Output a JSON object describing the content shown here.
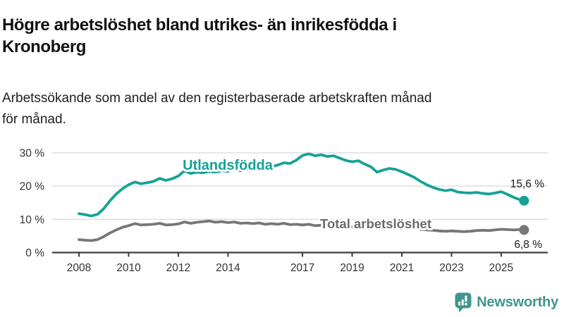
{
  "header": {
    "title": "Högre arbetslöshet bland utrikes- än inrikesfödda i\nKronoberg",
    "subtitle": "Arbetssökande som andel av den registerbaserade arbetskraften månad\nför månad."
  },
  "chart_data": {
    "type": "line",
    "title": "Högre arbetslöshet bland utrikes- än inrikesfödda i Kronoberg",
    "subtitle": "Arbetssökande som andel av den registerbaserade arbetskraften månad för månad.",
    "xlabel": "",
    "ylabel": "",
    "xlim": [
      2006.9,
      2026.9
    ],
    "ylim": [
      0,
      31
    ],
    "grid": "horizontal-light",
    "legend": "inline-series-labels",
    "xticks": [
      2008,
      2010,
      2012,
      2014,
      2017,
      2019,
      2021,
      2023,
      2025
    ],
    "xtick_labels": [
      "2008",
      "2010",
      "2012",
      "2014",
      "2017",
      "2019",
      "2021",
      "2023",
      "2025"
    ],
    "yticks": [
      0,
      10,
      20,
      30
    ],
    "ytick_labels": [
      "0 %",
      "10 %",
      "20 %",
      "30 %"
    ],
    "x": [
      2008,
      2008.25,
      2008.5,
      2008.75,
      2009,
      2009.25,
      2009.5,
      2009.75,
      2010,
      2010.25,
      2010.5,
      2010.75,
      2011,
      2011.25,
      2011.5,
      2011.75,
      2012,
      2012.25,
      2012.5,
      2012.75,
      2013,
      2013.25,
      2013.5,
      2013.75,
      2014,
      2014.25,
      2014.5,
      2014.75,
      2015,
      2015.25,
      2015.5,
      2015.75,
      2016,
      2016.25,
      2016.5,
      2016.75,
      2017,
      2017.25,
      2017.5,
      2017.75,
      2018,
      2018.25,
      2018.5,
      2018.75,
      2019,
      2019.25,
      2019.5,
      2019.75,
      2020,
      2020.25,
      2020.5,
      2020.75,
      2021,
      2021.25,
      2021.5,
      2021.75,
      2022,
      2022.25,
      2022.5,
      2022.75,
      2023,
      2023.25,
      2023.5,
      2023.75,
      2024,
      2024.25,
      2024.5,
      2024.75,
      2025,
      2025.25,
      2025.5,
      2025.75,
      2025.92
    ],
    "series": [
      {
        "name": "Utlandsfödda",
        "color": "#15a296",
        "label_color": "#15a296",
        "end_label": "15,6 %",
        "end_value": 15.6,
        "values": [
          11.7,
          11.4,
          11.0,
          11.5,
          13.2,
          15.6,
          17.6,
          19.2,
          20.4,
          21.2,
          20.7,
          21.0,
          21.4,
          22.3,
          21.7,
          22.2,
          23.0,
          24.6,
          23.8,
          24.2,
          24.0,
          24.4,
          24.2,
          24.6,
          24.4,
          25.0,
          24.6,
          24.9,
          25.2,
          25.6,
          25.3,
          25.8,
          26.3,
          27.0,
          26.8,
          27.8,
          29.2,
          29.7,
          29.1,
          29.4,
          28.9,
          29.1,
          28.4,
          27.7,
          27.3,
          27.6,
          26.6,
          25.8,
          24.2,
          24.8,
          25.3,
          25.0,
          24.3,
          23.5,
          22.6,
          21.4,
          20.4,
          19.6,
          19.0,
          18.6,
          18.9,
          18.2,
          18.0,
          17.9,
          18.1,
          17.8,
          17.6,
          17.9,
          18.3,
          17.5,
          16.6,
          15.9,
          15.6
        ]
      },
      {
        "name": "Total arbetslöshet",
        "color": "#767676",
        "label_color": "#6b6b6b",
        "end_label": "6,8 %",
        "end_value": 6.8,
        "values": [
          3.9,
          3.7,
          3.6,
          3.9,
          4.8,
          5.9,
          6.8,
          7.6,
          8.1,
          8.7,
          8.3,
          8.4,
          8.5,
          8.8,
          8.3,
          8.4,
          8.6,
          9.2,
          8.8,
          9.1,
          9.3,
          9.5,
          9.1,
          9.3,
          9.0,
          9.2,
          8.8,
          8.9,
          8.7,
          8.9,
          8.5,
          8.7,
          8.5,
          8.8,
          8.4,
          8.5,
          8.3,
          8.5,
          8.1,
          8.2,
          8.0,
          8.1,
          7.7,
          7.8,
          7.7,
          7.9,
          7.6,
          7.7,
          7.8,
          8.4,
          8.6,
          8.3,
          8.0,
          7.8,
          7.4,
          7.0,
          6.8,
          6.7,
          6.5,
          6.4,
          6.5,
          6.4,
          6.3,
          6.4,
          6.6,
          6.7,
          6.6,
          6.8,
          7.0,
          6.9,
          6.8,
          6.9,
          6.8
        ]
      }
    ],
    "colors": {
      "gridline": "#dcdcdc",
      "axis": "#3c3c3c",
      "tick_text": "#333333",
      "value_label_text": "#1a1a1a"
    }
  },
  "footer": {
    "brand": "Newsworthy",
    "brand_color": "#3e968c",
    "logo_icon": "bar-chart-badge-icon"
  }
}
